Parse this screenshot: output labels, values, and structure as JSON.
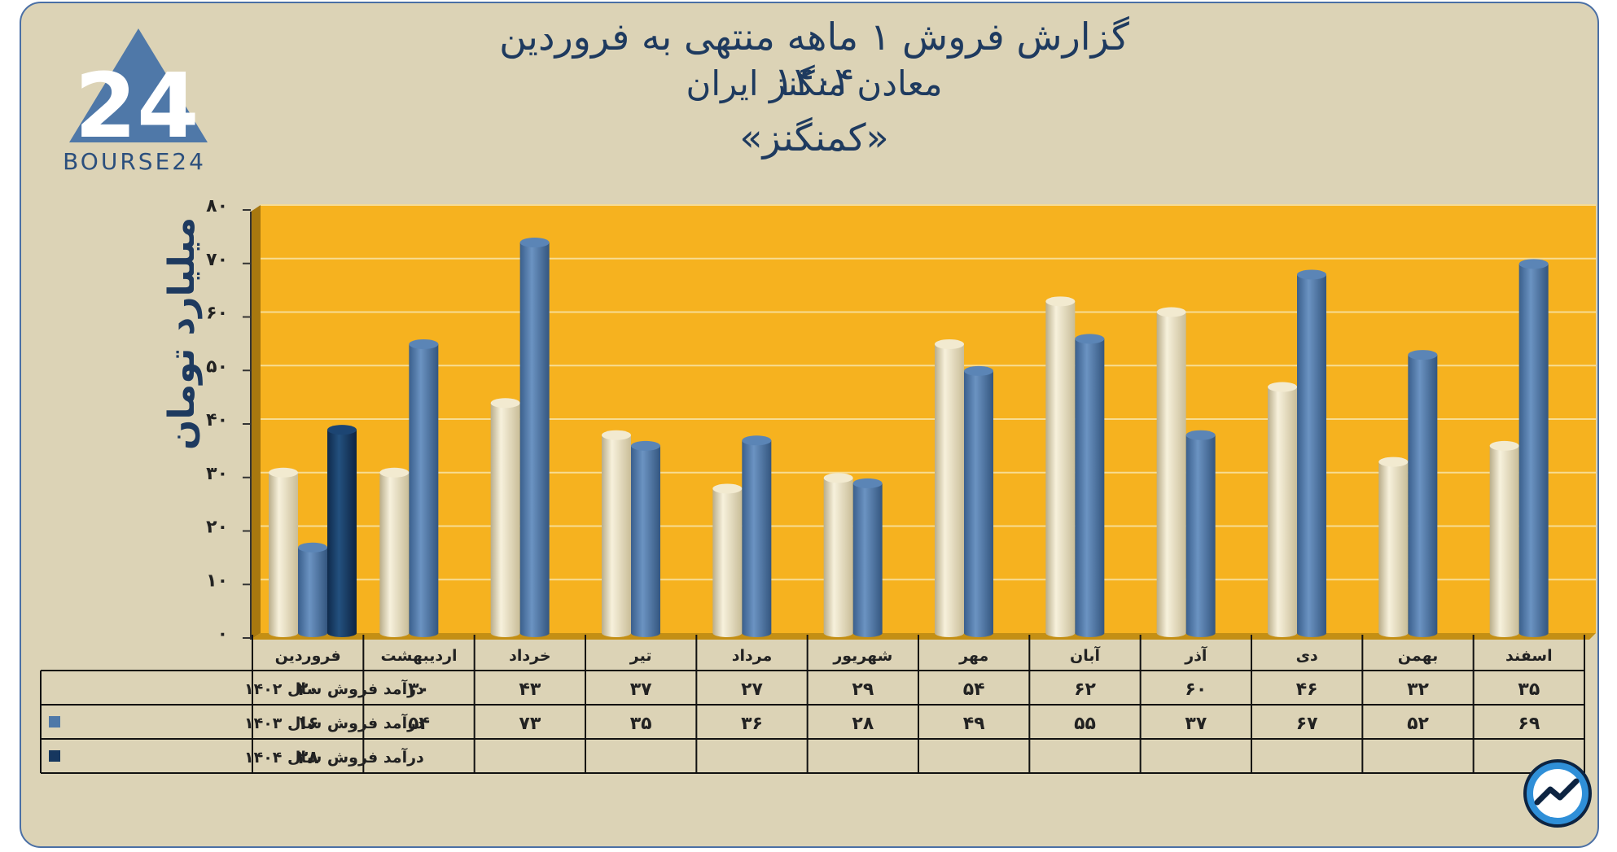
{
  "title": {
    "line1": "گزارش  فروش ۱ ماهه منتهی به فروردین ۱۴۰۴",
    "line2": "معادن منگنز ایران",
    "line3": "«کمنگنز»"
  },
  "logo": {
    "text": "BOURSE24",
    "mark": "24"
  },
  "colors": {
    "background": "#dcd3b6",
    "plot_area": "#f6b21f",
    "series_1402": "#e9dfbf",
    "series_1403": "#4f78a8",
    "series_1404": "#16375f",
    "title": "#1e3a5f"
  },
  "chart_data": {
    "type": "bar",
    "ylabel": "میلیارد تومان",
    "ylim": [
      0,
      80
    ],
    "yticks": [
      "۰",
      "۱۰",
      "۲۰",
      "۳۰",
      "۴۰",
      "۵۰",
      "۶۰",
      "۷۰",
      "۸۰"
    ],
    "ytick_values": [
      0,
      10,
      20,
      30,
      40,
      50,
      60,
      70,
      80
    ],
    "grid": true,
    "categories": [
      "فروردین",
      "اردیبهشت",
      "خرداد",
      "تیر",
      "مرداد",
      "شهریور",
      "مهر",
      "آبان",
      "آذر",
      "دی",
      "بهمن",
      "اسفند"
    ],
    "series": [
      {
        "name": "درآمد فروش سال ۱۴۰۲",
        "values": [
          30,
          30,
          43,
          37,
          27,
          29,
          54,
          62,
          60,
          46,
          32,
          35
        ],
        "labels": [
          "۳۰",
          "۳۰",
          "۴۳",
          "۳۷",
          "۲۷",
          "۲۹",
          "۵۴",
          "۶۲",
          "۶۰",
          "۴۶",
          "۳۲",
          "۳۵"
        ]
      },
      {
        "name": "درآمد فروش سال ۱۴۰۳",
        "values": [
          16,
          54,
          73,
          35,
          36,
          28,
          49,
          55,
          37,
          67,
          52,
          69
        ],
        "labels": [
          "۱۶",
          "۵۴",
          "۷۳",
          "۳۵",
          "۳۶",
          "۲۸",
          "۴۹",
          "۵۵",
          "۳۷",
          "۶۷",
          "۵۲",
          "۶۹"
        ]
      },
      {
        "name": "درآمد فروش سال ۱۴۰۴",
        "values": [
          38,
          null,
          null,
          null,
          null,
          null,
          null,
          null,
          null,
          null,
          null,
          null
        ],
        "labels": [
          "۳۸",
          "",
          "",
          "",
          "",
          "",
          "",
          "",
          "",
          "",
          "",
          ""
        ]
      }
    ]
  }
}
